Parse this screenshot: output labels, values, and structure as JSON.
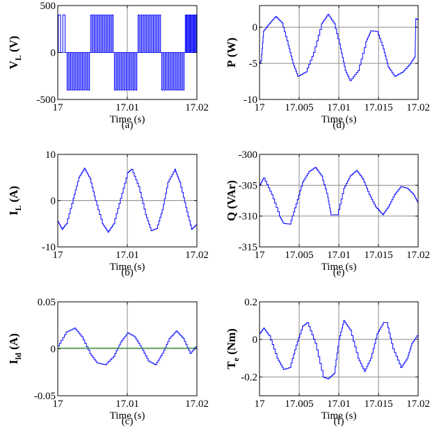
{
  "chart_data": [
    {
      "id": "a",
      "type": "line",
      "caption": "(a)",
      "xlabel": "Time (s)",
      "ylabel_main": "V",
      "ylabel_sub": "L",
      "ylabel_unit": "(V)",
      "xlim": [
        17,
        17.02
      ],
      "ylim": [
        -500,
        500
      ],
      "xticks": [
        17,
        17.01,
        17.02
      ],
      "xtick_labels": [
        "17",
        "17.01",
        "17.02"
      ],
      "yticks": [
        -500,
        0,
        500
      ],
      "ytick_labels": [
        "-500",
        "0",
        "500"
      ],
      "grid": true,
      "series": [
        {
          "kind": "pwm",
          "color": "#0000ff",
          "amplitude": 400,
          "half_cycles": [
            {
              "start": 17.0,
              "end": 17.0013,
              "sign": 1,
              "pulses": 2
            },
            {
              "start": 17.0013,
              "end": 17.0047,
              "sign": -1,
              "pulses": 10
            },
            {
              "start": 17.0047,
              "end": 17.0081,
              "sign": 1,
              "pulses": 10
            },
            {
              "start": 17.0081,
              "end": 17.0115,
              "sign": -1,
              "pulses": 10
            },
            {
              "start": 17.0115,
              "end": 17.0149,
              "sign": 1,
              "pulses": 10
            },
            {
              "start": 17.0149,
              "end": 17.0183,
              "sign": -1,
              "pulses": 10
            },
            {
              "start": 17.0183,
              "end": 17.02,
              "sign": 1,
              "pulses": 7
            }
          ]
        }
      ]
    },
    {
      "id": "b",
      "type": "line",
      "caption": "(b)",
      "xlabel": "Time (s)",
      "ylabel_main": "I",
      "ylabel_sub": "L",
      "ylabel_unit": "(A)",
      "xlim": [
        17,
        17.02
      ],
      "ylim": [
        -10,
        10
      ],
      "xticks": [
        17,
        17.01,
        17.02
      ],
      "xtick_labels": [
        "17",
        "17.01",
        "17.02"
      ],
      "yticks": [
        -10,
        0,
        10
      ],
      "ytick_labels": [
        "-10",
        "0",
        "10"
      ],
      "grid": true,
      "series": [
        {
          "color": "#0000ff",
          "x": [
            17.0,
            17.0006,
            17.0012,
            17.0022,
            17.003,
            17.0038,
            17.0046,
            17.0054,
            17.0064,
            17.0072,
            17.008,
            17.009,
            17.01,
            17.0106,
            17.0116,
            17.0126,
            17.0134,
            17.0142,
            17.015,
            17.0158,
            17.0168,
            17.0175,
            17.0184,
            17.0192,
            17.02
          ],
          "y": [
            -4.5,
            -6.2,
            -5,
            0.5,
            5,
            7,
            4.8,
            0,
            -5,
            -6.8,
            -5,
            0.5,
            6,
            6.8,
            3,
            -3,
            -6.5,
            -6,
            -2,
            4,
            6.8,
            4,
            -1.5,
            -6.2,
            -5
          ]
        }
      ]
    },
    {
      "id": "c",
      "type": "line",
      "caption": "(c)",
      "xlabel": "Time (s)",
      "ylabel_main": "I",
      "ylabel_sub": "ld",
      "ylabel_unit": "(A)",
      "xlim": [
        17,
        17.02
      ],
      "ylim": [
        -0.05,
        0.05
      ],
      "xticks": [
        17,
        17.01,
        17.02
      ],
      "xtick_labels": [
        "17",
        "17.01",
        "17.02"
      ],
      "yticks": [
        -0.05,
        0,
        0.05
      ],
      "ytick_labels": [
        "-0.05",
        "0",
        "0.05"
      ],
      "grid": true,
      "series": [
        {
          "color": "#0000ff",
          "x": [
            17.0,
            17.0012,
            17.0024,
            17.0034,
            17.0046,
            17.0056,
            17.0068,
            17.008,
            17.009,
            17.01,
            17.011,
            17.012,
            17.013,
            17.014,
            17.015,
            17.016,
            17.017,
            17.018,
            17.019,
            17.02
          ],
          "y": [
            0.003,
            0.018,
            0.022,
            0.013,
            -0.005,
            -0.015,
            -0.017,
            -0.008,
            0.007,
            0.017,
            0.013,
            0.001,
            -0.013,
            -0.017,
            -0.005,
            0.011,
            0.019,
            0.011,
            -0.005,
            0.004
          ]
        },
        {
          "color": "#33aa33",
          "x": [
            17.0,
            17.02
          ],
          "y": [
            0.001,
            0.001
          ]
        }
      ]
    },
    {
      "id": "d",
      "type": "line",
      "caption": "(d)",
      "xlabel": "Time (s)",
      "ylabel_main": "P",
      "ylabel_sub": "",
      "ylabel_unit": "(W)",
      "xlim": [
        17,
        17.02
      ],
      "ylim": [
        -10,
        3
      ],
      "xticks": [
        17,
        17.005,
        17.01,
        17.015,
        17.02
      ],
      "xtick_labels": [
        "17",
        "17.005",
        "17.01",
        "17.015",
        "17.02"
      ],
      "yticks": [
        -10,
        -5,
        0
      ],
      "ytick_labels": [
        "-10",
        "-5",
        "0"
      ],
      "grid": true,
      "series": [
        {
          "color": "#0000ff",
          "x": [
            17.0,
            17.0002,
            17.0005,
            17.0012,
            17.002,
            17.0028,
            17.0036,
            17.0042,
            17.0048,
            17.0058,
            17.0068,
            17.0078,
            17.0086,
            17.0094,
            17.0102,
            17.0108,
            17.0114,
            17.0124,
            17.0134,
            17.014,
            17.0148,
            17.0156,
            17.0162,
            17.017,
            17.018,
            17.019,
            17.0196,
            17.0197,
            17.02
          ],
          "y": [
            -5,
            -4.6,
            -0.5,
            0.5,
            1.5,
            0.6,
            -2.5,
            -5,
            -6.8,
            -6.2,
            -3.5,
            0.5,
            1.8,
            0.5,
            -3,
            -6,
            -7.4,
            -6,
            -2,
            -0.5,
            -0.6,
            -3,
            -5.5,
            -6.8,
            -6.2,
            -5,
            -4,
            1.2,
            1
          ]
        }
      ]
    },
    {
      "id": "e",
      "type": "line",
      "caption": "(e)",
      "xlabel": "Time (s)",
      "ylabel_main": "Q",
      "ylabel_sub": "",
      "ylabel_unit": "(VAr)",
      "xlim": [
        17,
        17.02
      ],
      "ylim": [
        -315,
        -300
      ],
      "xticks": [
        17,
        17.005,
        17.01,
        17.015,
        17.02
      ],
      "xtick_labels": [
        "17",
        "17.005",
        "17.01",
        "17.015",
        "17.02"
      ],
      "yticks": [
        -315,
        -310,
        -305,
        -300
      ],
      "ytick_labels": [
        "-315",
        "-310",
        "-305",
        "-300"
      ],
      "grid": true,
      "series": [
        {
          "color": "#0000ff",
          "x": [
            17.0,
            17.0005,
            17.0015,
            17.0025,
            17.003,
            17.0038,
            17.0046,
            17.0054,
            17.0062,
            17.007,
            17.0078,
            17.0086,
            17.009,
            17.0098,
            17.0106,
            17.0114,
            17.0122,
            17.013,
            17.0138,
            17.0146,
            17.0155,
            17.0162,
            17.017,
            17.0178,
            17.0186,
            17.0194,
            17.02
          ],
          "y": [
            -305,
            -303.8,
            -306.5,
            -310,
            -311.2,
            -311.3,
            -308,
            -304.5,
            -302.8,
            -302.1,
            -303.5,
            -307,
            -309.8,
            -309.8,
            -305.5,
            -303.5,
            -302.6,
            -304,
            -306.5,
            -308.5,
            -309.8,
            -308.5,
            -306.5,
            -305.2,
            -305.5,
            -306.5,
            -308
          ]
        }
      ]
    },
    {
      "id": "f",
      "type": "line",
      "caption": "(f)",
      "xlabel": "Time (s)",
      "ylabel_main": "T",
      "ylabel_sub": "e",
      "ylabel_unit": "(Nm)",
      "xlim": [
        17,
        17.02
      ],
      "ylim": [
        -0.3,
        0.2
      ],
      "xticks": [
        17,
        17.005,
        17.01,
        17.015,
        17.02
      ],
      "xtick_labels": [
        "17",
        "17.005",
        "17.01",
        "17.015",
        "17.02"
      ],
      "yticks": [
        -0.2,
        0,
        0.2
      ],
      "ytick_labels": [
        "-0.2",
        "0",
        "0.2"
      ],
      "grid": true,
      "series": [
        {
          "color": "#0000ff",
          "x": [
            17.0,
            17.0005,
            17.0012,
            17.0022,
            17.003,
            17.0038,
            17.0046,
            17.0054,
            17.006,
            17.007,
            17.008,
            17.0086,
            17.0094,
            17.01,
            17.0106,
            17.0114,
            17.0124,
            17.0132,
            17.014,
            17.0148,
            17.0156,
            17.016,
            17.0168,
            17.0178,
            17.0186,
            17.0192,
            17.02
          ],
          "y": [
            0.03,
            0.06,
            0.02,
            -0.1,
            -0.16,
            -0.15,
            -0.03,
            0.07,
            0.09,
            -0.02,
            -0.2,
            -0.21,
            -0.18,
            0.0,
            0.1,
            0.05,
            -0.1,
            -0.17,
            -0.1,
            0.03,
            0.09,
            0.09,
            -0.05,
            -0.15,
            -0.1,
            -0.02,
            0.03
          ]
        }
      ]
    }
  ]
}
